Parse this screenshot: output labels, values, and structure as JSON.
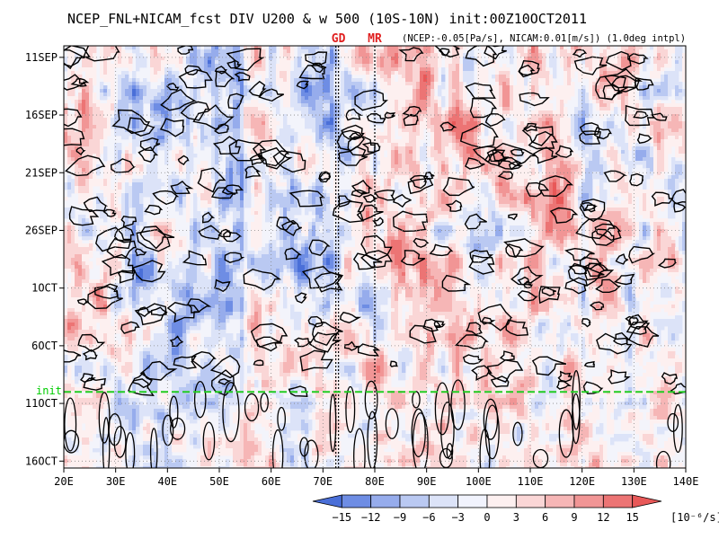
{
  "chart_data": {
    "type": "heatmap",
    "title": "NCEP_FNL+NICAM_fcst DIV U200 & w 500 (10S-10N) init:00Z10OCT2011",
    "subtitle": "(NCEP:-0.05[Pa/s], NICAM:0.01[m/s]) (1.0deg intpl)",
    "x_ticks": [
      "20E",
      "30E",
      "40E",
      "50E",
      "60E",
      "70E",
      "80E",
      "90E",
      "100E",
      "110E",
      "120E",
      "130E",
      "140E"
    ],
    "x_tick_values": [
      20,
      30,
      40,
      50,
      60,
      70,
      80,
      90,
      100,
      110,
      120,
      130,
      140
    ],
    "xlim": [
      20,
      140
    ],
    "y_ticks": [
      "11SEP",
      "16SEP",
      "21SEP",
      "26SEP",
      "1OCT",
      "6OCT",
      "11OCT",
      "16OCT"
    ],
    "y_tick_days": [
      0,
      5,
      10,
      15,
      20,
      25,
      30,
      35
    ],
    "ylim_days": [
      -1,
      35.6
    ],
    "init_label": "init",
    "init_day": 29,
    "markers": [
      {
        "label": "GD",
        "lon": 73
      },
      {
        "label": "MR",
        "lon": 80
      }
    ],
    "grid": true,
    "colorbar": {
      "levels": [
        -15,
        -12,
        -9,
        -6,
        -3,
        0,
        3,
        6,
        9,
        12,
        15
      ],
      "level_labels": [
        "−15",
        "−12",
        "−9",
        "−6",
        "−3",
        "0",
        "3",
        "6",
        "9",
        "12",
        "15"
      ],
      "colors": [
        "#4a6fd8",
        "#6e8de4",
        "#96acec",
        "#bac9f2",
        "#dce3f8",
        "#f1f3fd",
        "#fdf0f0",
        "#fad6d6",
        "#f6b6b6",
        "#f19595",
        "#ec7474",
        "#e85858"
      ],
      "unit": "[10⁻⁶/s]"
    }
  }
}
